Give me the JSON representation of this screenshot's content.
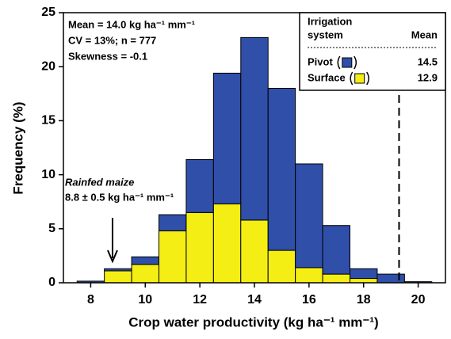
{
  "chart_data": {
    "type": "stacked-histogram",
    "xlabel": "Crop water productivity (kg ha⁻¹ mm⁻¹)",
    "ylabel": "Frequency (%)",
    "bins": [
      7.5,
      8.5,
      9.5,
      10.5,
      11.5,
      12.5,
      13.5,
      14.5,
      15.5,
      16.5,
      17.5,
      18.5,
      19.5,
      20.5
    ],
    "series": [
      {
        "name": "Pivot",
        "color": "#2f4fa8",
        "mean": 14.5,
        "values": [
          0.15,
          0.2,
          0.7,
          1.5,
          4.9,
          12.1,
          16.9,
          15.0,
          9.6,
          4.5,
          0.9,
          0.8,
          0.1
        ]
      },
      {
        "name": "Surface",
        "color": "#f5ee14",
        "mean": 12.9,
        "values": [
          0,
          1.1,
          1.7,
          4.8,
          6.5,
          7.3,
          5.8,
          3.0,
          1.4,
          0.8,
          0.4,
          0,
          0
        ]
      }
    ],
    "xlim": [
      7,
      21
    ],
    "ylim": [
      0,
      25
    ],
    "xticks": [
      8,
      10,
      12,
      14,
      16,
      18,
      20
    ],
    "yticks": [
      0,
      5,
      10,
      15,
      20,
      25
    ],
    "legend_title": [
      "Irrigation",
      "system"
    ],
    "legend_value_header": "Mean",
    "stats": [
      "Mean = 14.0 kg ha⁻¹ mm⁻¹",
      "CV = 13%; n = 777",
      "Skewness = -0.1"
    ],
    "reference_line": 19.3,
    "arrow_annotation": {
      "title": "Rainfed maize",
      "text": "8.8 ± 0.5 kg ha⁻¹ mm⁻¹",
      "x": 8.8
    }
  }
}
